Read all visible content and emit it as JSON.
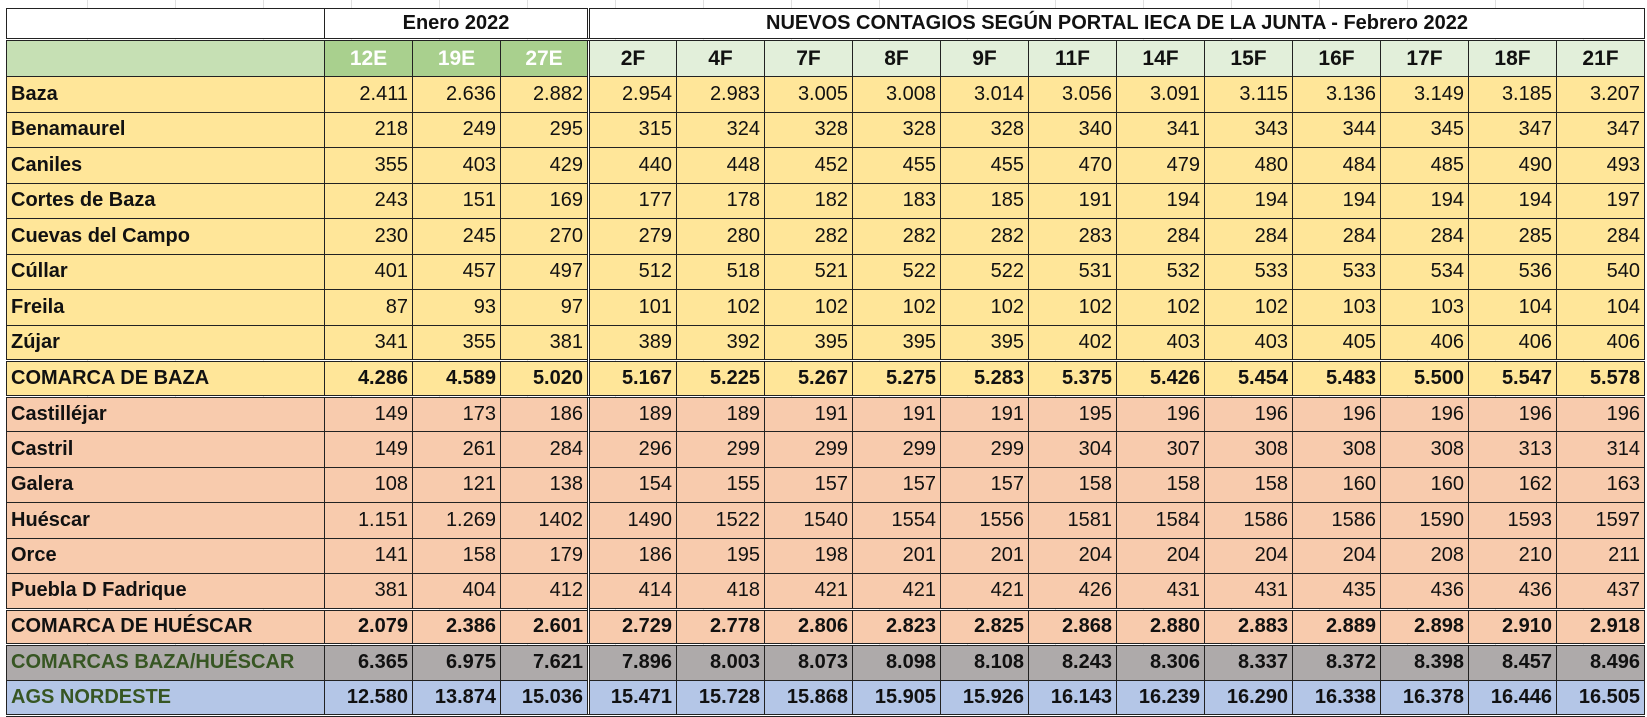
{
  "title": {
    "enero": "Enero 2022",
    "febrero": "NUEVOS CONTAGIOS  SEGÚN PORTAL IECA DE LA JUNTA - Febrero 2022"
  },
  "columns": [
    "12E",
    "19E",
    "27E",
    "2F",
    "4F",
    "7F",
    "8F",
    "9F",
    "11F",
    "14F",
    "15F",
    "16F",
    "17F",
    "18F",
    "21F"
  ],
  "colors": {
    "baza": "#FFE699",
    "huescar": "#F8CBAD",
    "combined": "#AEAAAA",
    "ags": "#B4C6E7",
    "header_green": "#C6E0B4",
    "enero_header": "#A9D08E",
    "febrero_header": "#E2EFDA",
    "total_label": "#375623"
  },
  "rows": [
    {
      "group": "baza",
      "name": "Baza",
      "values": [
        "2.411",
        "2.636",
        "2.882",
        "2.954",
        "2.983",
        "3.005",
        "3.008",
        "3.014",
        "3.056",
        "3.091",
        "3.115",
        "3.136",
        "3.149",
        "3.185",
        "3.207"
      ]
    },
    {
      "group": "baza",
      "name": "Benamaurel",
      "values": [
        "218",
        "249",
        "295",
        "315",
        "324",
        "328",
        "328",
        "328",
        "340",
        "341",
        "343",
        "344",
        "345",
        "347",
        "347"
      ]
    },
    {
      "group": "baza",
      "name": "Caniles",
      "values": [
        "355",
        "403",
        "429",
        "440",
        "448",
        "452",
        "455",
        "455",
        "470",
        "479",
        "480",
        "484",
        "485",
        "490",
        "493"
      ]
    },
    {
      "group": "baza",
      "name": "Cortes de Baza",
      "values": [
        "243",
        "151",
        "169",
        "177",
        "178",
        "182",
        "183",
        "185",
        "191",
        "194",
        "194",
        "194",
        "194",
        "194",
        "197"
      ]
    },
    {
      "group": "baza",
      "name": "Cuevas del Campo",
      "values": [
        "230",
        "245",
        "270",
        "279",
        "280",
        "282",
        "282",
        "282",
        "283",
        "284",
        "284",
        "284",
        "284",
        "285",
        "284"
      ]
    },
    {
      "group": "baza",
      "name": "Cúllar",
      "values": [
        "401",
        "457",
        "497",
        "512",
        "518",
        "521",
        "522",
        "522",
        "531",
        "532",
        "533",
        "533",
        "534",
        "536",
        "540"
      ]
    },
    {
      "group": "baza",
      "name": "Freila",
      "values": [
        "87",
        "93",
        "97",
        "101",
        "102",
        "102",
        "102",
        "102",
        "102",
        "102",
        "102",
        "103",
        "103",
        "104",
        "104"
      ]
    },
    {
      "group": "baza",
      "name": "Zújar",
      "values": [
        "341",
        "355",
        "381",
        "389",
        "392",
        "395",
        "395",
        "395",
        "402",
        "403",
        "403",
        "405",
        "406",
        "406",
        "406"
      ]
    },
    {
      "group": "baza total",
      "name": "COMARCA DE BAZA",
      "values": [
        "4.286",
        "4.589",
        "5.020",
        "5.167",
        "5.225",
        "5.267",
        "5.275",
        "5.283",
        "5.375",
        "5.426",
        "5.454",
        "5.483",
        "5.500",
        "5.547",
        "5.578"
      ]
    },
    {
      "group": "hues",
      "name": "Castilléjar",
      "values": [
        "149",
        "173",
        "186",
        "189",
        "189",
        "191",
        "191",
        "191",
        "195",
        "196",
        "196",
        "196",
        "196",
        "196",
        "196"
      ]
    },
    {
      "group": "hues",
      "name": "Castril",
      "values": [
        "149",
        "261",
        "284",
        "296",
        "299",
        "299",
        "299",
        "299",
        "304",
        "307",
        "308",
        "308",
        "308",
        "313",
        "314"
      ]
    },
    {
      "group": "hues",
      "name": "Galera",
      "values": [
        "108",
        "121",
        "138",
        "154",
        "155",
        "157",
        "157",
        "157",
        "158",
        "158",
        "158",
        "160",
        "160",
        "162",
        "163"
      ]
    },
    {
      "group": "hues",
      "name": "Huéscar",
      "values": [
        "1.151",
        "1.269",
        "1402",
        "1490",
        "1522",
        "1540",
        "1554",
        "1556",
        "1581",
        "1584",
        "1586",
        "1586",
        "1590",
        "1593",
        "1597"
      ]
    },
    {
      "group": "hues",
      "name": "Orce",
      "values": [
        "141",
        "158",
        "179",
        "186",
        "195",
        "198",
        "201",
        "201",
        "204",
        "204",
        "204",
        "204",
        "208",
        "210",
        "211"
      ]
    },
    {
      "group": "hues",
      "name": "Puebla D Fadrique",
      "values": [
        "381",
        "404",
        "412",
        "414",
        "418",
        "421",
        "421",
        "421",
        "426",
        "431",
        "431",
        "435",
        "436",
        "436",
        "437"
      ]
    },
    {
      "group": "hues total",
      "name": "COMARCA DE HUÉSCAR",
      "values": [
        "2.079",
        "2.386",
        "2.601",
        "2.729",
        "2.778",
        "2.806",
        "2.823",
        "2.825",
        "2.868",
        "2.880",
        "2.883",
        "2.889",
        "2.898",
        "2.910",
        "2.918"
      ]
    },
    {
      "group": "both",
      "name": "COMARCAS BAZA/HUÉSCAR",
      "values": [
        "6.365",
        "6.975",
        "7.621",
        "7.896",
        "8.003",
        "8.073",
        "8.098",
        "8.108",
        "8.243",
        "8.306",
        "8.337",
        "8.372",
        "8.398",
        "8.457",
        "8.496"
      ]
    },
    {
      "group": "ags",
      "name": "AGS NORDESTE",
      "values": [
        "12.580",
        "13.874",
        "15.036",
        "15.471",
        "15.728",
        "15.868",
        "15.905",
        "15.926",
        "16.143",
        "16.239",
        "16.290",
        "16.338",
        "16.378",
        "16.446",
        "16.505"
      ]
    }
  ]
}
